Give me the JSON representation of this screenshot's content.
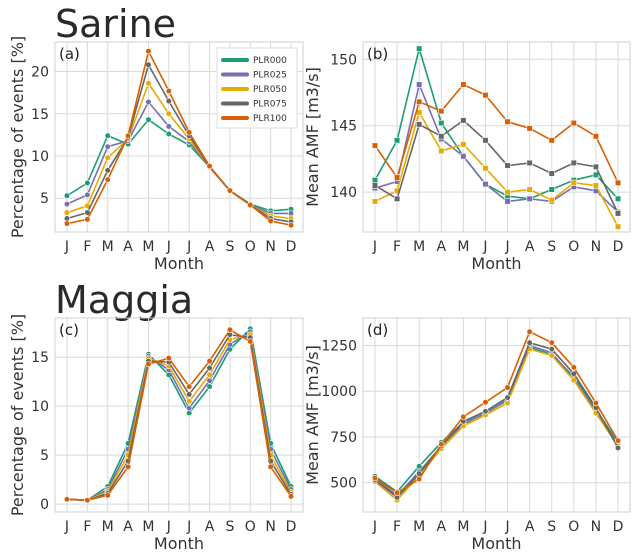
{
  "groups": [
    {
      "title": "Sarine"
    },
    {
      "title": "Maggia"
    }
  ],
  "legend": {
    "entries": [
      {
        "name": "PLR000",
        "color": "#1b9e77"
      },
      {
        "name": "PLR025",
        "color": "#7570b3"
      },
      {
        "name": "PLR050",
        "color": "#e6ab02"
      },
      {
        "name": "PLR075",
        "color": "#666666"
      },
      {
        "name": "PLR100",
        "color": "#d95f02"
      }
    ]
  },
  "chart_data": [
    {
      "type": "line",
      "panel_label": "(a)",
      "categories": [
        "J",
        "F",
        "M",
        "A",
        "M",
        "J",
        "J",
        "A",
        "S",
        "O",
        "N",
        "D"
      ],
      "xlabel": "Month",
      "ylabel": "Percentage of events [%]",
      "ylim": [
        1,
        23.5
      ],
      "yticks": [
        5,
        10,
        15,
        20
      ],
      "grid": true,
      "legend_placement": "top-right",
      "series": [
        {
          "name": "PLR000",
          "values": [
            5.3,
            6.8,
            12.4,
            11.4,
            14.3,
            12.6,
            11.3,
            8.7,
            5.9,
            4.3,
            3.5,
            3.7
          ]
        },
        {
          "name": "PLR025",
          "values": [
            4.3,
            5.4,
            11.1,
            11.8,
            16.4,
            13.5,
            11.7,
            8.7,
            5.9,
            4.2,
            3.2,
            3.2
          ]
        },
        {
          "name": "PLR050",
          "values": [
            3.3,
            4.1,
            9.8,
            12.0,
            18.6,
            15.0,
            12.0,
            8.7,
            5.9,
            4.2,
            2.9,
            2.6
          ]
        },
        {
          "name": "PLR075",
          "values": [
            2.6,
            3.3,
            8.3,
            12.2,
            20.8,
            16.5,
            12.4,
            8.7,
            5.9,
            4.2,
            2.6,
            2.2
          ]
        },
        {
          "name": "PLR100",
          "values": [
            2.0,
            2.5,
            7.2,
            12.4,
            22.4,
            17.7,
            12.8,
            8.8,
            5.9,
            4.2,
            2.3,
            1.8
          ]
        }
      ]
    },
    {
      "type": "line",
      "panel_label": "(b)",
      "categories": [
        "J",
        "F",
        "M",
        "A",
        "M",
        "J",
        "J",
        "A",
        "S",
        "O",
        "N",
        "D"
      ],
      "xlabel": "Month",
      "ylabel": "Mean AMF [m3/s]",
      "ylim": [
        137,
        151.3
      ],
      "yticks": [
        140,
        145,
        150
      ],
      "grid": true,
      "series": [
        {
          "name": "PLR000",
          "values": [
            140.9,
            143.9,
            150.8,
            145.2,
            142.7,
            140.6,
            139.7,
            139.5,
            140.2,
            140.9,
            141.3,
            139.5
          ]
        },
        {
          "name": "PLR025",
          "values": [
            140.3,
            140.8,
            148.1,
            144.0,
            142.7,
            140.6,
            139.3,
            139.5,
            139.3,
            140.4,
            140.1,
            138.5
          ]
        },
        {
          "name": "PLR050",
          "values": [
            139.3,
            140.1,
            146.0,
            143.1,
            143.6,
            141.8,
            140.0,
            140.2,
            139.4,
            140.7,
            140.5,
            137.4
          ]
        },
        {
          "name": "PLR075",
          "values": [
            140.5,
            139.5,
            145.1,
            144.2,
            145.4,
            143.9,
            142.0,
            142.2,
            141.4,
            142.2,
            141.9,
            138.4
          ]
        },
        {
          "name": "PLR100",
          "values": [
            143.5,
            141.1,
            146.8,
            146.1,
            148.1,
            147.3,
            145.3,
            144.8,
            143.9,
            145.2,
            144.2,
            140.7
          ]
        }
      ]
    },
    {
      "type": "line",
      "panel_label": "(c)",
      "categories": [
        "J",
        "F",
        "M",
        "A",
        "M",
        "J",
        "J",
        "A",
        "S",
        "O",
        "N",
        "D"
      ],
      "xlabel": "Month",
      "ylabel": "Percentage of events [%]",
      "ylim": [
        -0.8,
        19
      ],
      "yticks": [
        0,
        5,
        10,
        15
      ],
      "grid": true,
      "series": [
        {
          "name": "PLR000",
          "values": [
            0.5,
            0.4,
            1.8,
            6.2,
            15.3,
            13.2,
            9.3,
            12.0,
            15.8,
            17.9,
            6.2,
            1.8
          ]
        },
        {
          "name": "PLR025",
          "values": [
            0.5,
            0.4,
            1.5,
            5.6,
            15.1,
            13.7,
            9.8,
            12.6,
            16.3,
            17.6,
            5.6,
            1.5
          ]
        },
        {
          "name": "PLR050",
          "values": [
            0.5,
            0.4,
            1.3,
            5.0,
            14.9,
            14.1,
            10.5,
            13.2,
            16.8,
            17.3,
            5.0,
            1.2
          ]
        },
        {
          "name": "PLR075",
          "values": [
            0.5,
            0.4,
            1.1,
            4.4,
            14.6,
            14.5,
            11.2,
            13.9,
            17.3,
            17.0,
            4.4,
            1.0
          ]
        },
        {
          "name": "PLR100",
          "values": [
            0.5,
            0.4,
            0.9,
            3.8,
            14.3,
            14.9,
            12.0,
            14.6,
            17.8,
            16.6,
            3.8,
            0.8
          ]
        }
      ]
    },
    {
      "type": "line",
      "panel_label": "(d)",
      "categories": [
        "J",
        "F",
        "M",
        "A",
        "M",
        "J",
        "J",
        "A",
        "S",
        "O",
        "N",
        "D"
      ],
      "xlabel": "Month",
      "ylabel": "Mean AMF [m3/s]",
      "ylim": [
        340,
        1400
      ],
      "yticks": [
        500,
        750,
        1000,
        1250
      ],
      "grid": true,
      "series": [
        {
          "name": "PLR000",
          "values": [
            535,
            450,
            590,
            720,
            830,
            890,
            960,
            1240,
            1200,
            1080,
            900,
            720
          ]
        },
        {
          "name": "PLR025",
          "values": [
            520,
            430,
            560,
            700,
            820,
            880,
            950,
            1250,
            1210,
            1070,
            890,
            710
          ]
        },
        {
          "name": "PLR050",
          "values": [
            505,
            405,
            540,
            685,
            810,
            870,
            935,
            1230,
            1195,
            1060,
            880,
            700
          ]
        },
        {
          "name": "PLR075",
          "values": [
            515,
            420,
            550,
            700,
            835,
            890,
            965,
            1265,
            1230,
            1095,
            910,
            690
          ]
        },
        {
          "name": "PLR100",
          "values": [
            525,
            445,
            520,
            710,
            860,
            940,
            1020,
            1325,
            1265,
            1130,
            935,
            730
          ]
        }
      ]
    }
  ]
}
